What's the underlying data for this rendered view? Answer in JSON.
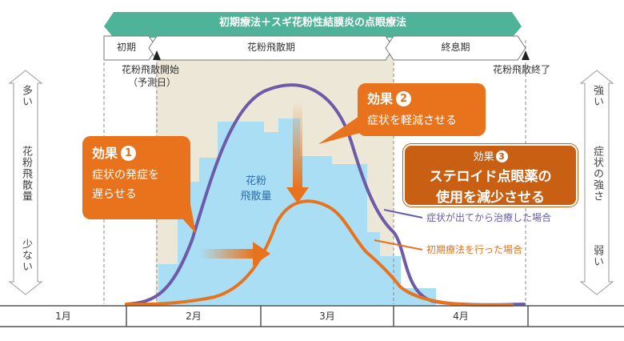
{
  "title": "初期療法＋スギ花粉性結膜炎の点眼療法",
  "phases": {
    "early": "初期",
    "dispersal": "花粉飛散期",
    "late": "終息期"
  },
  "markers": {
    "start_line1": "花粉飛散開始",
    "start_line2": "（予測日）",
    "end": "花粉飛散終了"
  },
  "left_axis": {
    "top": "多い",
    "label": "花粉飛散量",
    "bottom": "少ない"
  },
  "right_axis": {
    "top": "強い",
    "label": "症状の強さ",
    "bottom": "弱い"
  },
  "bars_label_1": "花粉",
  "bars_label_2": "飛散量",
  "effect1": {
    "head": "効果",
    "num": "1",
    "line1": "症状の発症を",
    "line2": "遅らせる"
  },
  "effect2": {
    "head": "効果",
    "num": "2",
    "line1": "症状を軽減させる"
  },
  "effect3": {
    "head": "効果",
    "num": "3",
    "line1": "ステロイド点眼薬の",
    "line2": "使用を減少させる"
  },
  "legend": {
    "late_treatment": "症状が出てから治療した場合",
    "early_treatment": "初期療法を行った場合"
  },
  "months": [
    "1月",
    "2月",
    "3月",
    "4月"
  ],
  "colors": {
    "orange": "#e8731c",
    "purple": "#6b5ba8",
    "green": "#4fb39a",
    "bars": "#a9def5",
    "shade": "#ece7d6"
  }
}
